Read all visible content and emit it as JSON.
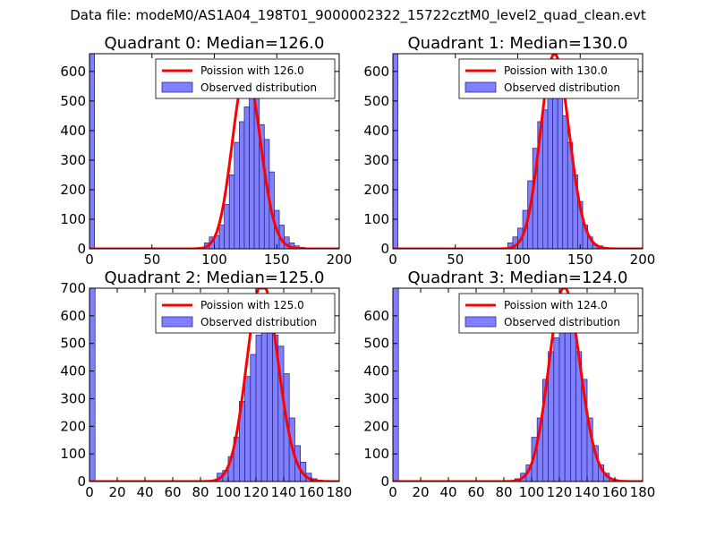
{
  "suptitle": "Data file: modeM0/AS1A04_198T01_9000002322_15722cztM0_level2_quad_clean.evt",
  "colors": {
    "bar_fill": "#8080ff",
    "bar_edge": "#2a2a8c",
    "fit_line": "#ff0000"
  },
  "chart_data": [
    {
      "type": "bar",
      "title": "Quadrant 0: Median=126.0",
      "xlim": [
        0,
        200
      ],
      "ylim": [
        0,
        660
      ],
      "xticks": [
        0,
        50,
        100,
        150,
        200
      ],
      "yticks": [
        0,
        100,
        200,
        300,
        400,
        500,
        600
      ],
      "median": 126.0,
      "bin_width": 4,
      "legend": {
        "line": "Poission with 126.0",
        "bars": "Observed distribution"
      },
      "bins": [
        {
          "x": 0,
          "count": 660
        },
        {
          "x": 88,
          "count": 5
        },
        {
          "x": 92,
          "count": 20
        },
        {
          "x": 96,
          "count": 40
        },
        {
          "x": 100,
          "count": 45
        },
        {
          "x": 104,
          "count": 80
        },
        {
          "x": 108,
          "count": 150
        },
        {
          "x": 112,
          "count": 250
        },
        {
          "x": 116,
          "count": 360
        },
        {
          "x": 120,
          "count": 430
        },
        {
          "x": 124,
          "count": 480
        },
        {
          "x": 128,
          "count": 520
        },
        {
          "x": 132,
          "count": 510
        },
        {
          "x": 136,
          "count": 420
        },
        {
          "x": 140,
          "count": 370
        },
        {
          "x": 144,
          "count": 260
        },
        {
          "x": 148,
          "count": 130
        },
        {
          "x": 152,
          "count": 80
        },
        {
          "x": 156,
          "count": 40
        },
        {
          "x": 160,
          "count": 20
        },
        {
          "x": 164,
          "count": 10
        },
        {
          "x": 168,
          "count": 5
        },
        {
          "x": 172,
          "count": 3
        }
      ]
    },
    {
      "type": "bar",
      "title": "Quadrant 1: Median=130.0",
      "xlim": [
        0,
        200
      ],
      "ylim": [
        0,
        660
      ],
      "xticks": [
        0,
        50,
        100,
        150,
        200
      ],
      "yticks": [
        0,
        100,
        200,
        300,
        400,
        500,
        600
      ],
      "median": 130.0,
      "bin_width": 4,
      "legend": {
        "line": "Poission with 130.0",
        "bars": "Observed distribution"
      },
      "bins": [
        {
          "x": 0,
          "count": 660
        },
        {
          "x": 92,
          "count": 20
        },
        {
          "x": 96,
          "count": 40
        },
        {
          "x": 100,
          "count": 70
        },
        {
          "x": 104,
          "count": 130
        },
        {
          "x": 108,
          "count": 230
        },
        {
          "x": 112,
          "count": 340
        },
        {
          "x": 116,
          "count": 430
        },
        {
          "x": 120,
          "count": 470
        },
        {
          "x": 124,
          "count": 530
        },
        {
          "x": 128,
          "count": 560
        },
        {
          "x": 132,
          "count": 520
        },
        {
          "x": 136,
          "count": 450
        },
        {
          "x": 140,
          "count": 360
        },
        {
          "x": 144,
          "count": 250
        },
        {
          "x": 148,
          "count": 160
        },
        {
          "x": 152,
          "count": 80
        },
        {
          "x": 156,
          "count": 40
        },
        {
          "x": 160,
          "count": 15
        },
        {
          "x": 164,
          "count": 10
        },
        {
          "x": 168,
          "count": 5
        }
      ]
    },
    {
      "type": "bar",
      "title": "Quadrant 2: Median=125.0",
      "xlim": [
        0,
        180
      ],
      "ylim": [
        0,
        700
      ],
      "xticks": [
        0,
        20,
        40,
        60,
        80,
        100,
        120,
        140,
        160,
        180
      ],
      "yticks": [
        0,
        100,
        200,
        300,
        400,
        500,
        600,
        700
      ],
      "median": 125.0,
      "bin_width": 4,
      "legend": {
        "line": "Poission with 125.0",
        "bars": "Observed distribution"
      },
      "bins": [
        {
          "x": 0,
          "count": 700
        },
        {
          "x": 92,
          "count": 30
        },
        {
          "x": 96,
          "count": 40
        },
        {
          "x": 100,
          "count": 90
        },
        {
          "x": 104,
          "count": 160
        },
        {
          "x": 108,
          "count": 290
        },
        {
          "x": 112,
          "count": 380
        },
        {
          "x": 116,
          "count": 460
        },
        {
          "x": 120,
          "count": 530
        },
        {
          "x": 124,
          "count": 600
        },
        {
          "x": 128,
          "count": 600
        },
        {
          "x": 132,
          "count": 530
        },
        {
          "x": 136,
          "count": 490
        },
        {
          "x": 140,
          "count": 390
        },
        {
          "x": 144,
          "count": 230
        },
        {
          "x": 148,
          "count": 130
        },
        {
          "x": 152,
          "count": 70
        },
        {
          "x": 156,
          "count": 30
        },
        {
          "x": 160,
          "count": 10
        },
        {
          "x": 164,
          "count": 5
        }
      ]
    },
    {
      "type": "bar",
      "title": "Quadrant 3: Median=124.0",
      "xlim": [
        0,
        180
      ],
      "ylim": [
        0,
        700
      ],
      "xticks": [
        0,
        20,
        40,
        60,
        80,
        100,
        120,
        140,
        160,
        180
      ],
      "yticks": [
        0,
        100,
        200,
        300,
        400,
        500,
        600
      ],
      "median": 124.0,
      "bin_width": 4,
      "legend": {
        "line": "Poission with 124.0",
        "bars": "Observed distribution"
      },
      "bins": [
        {
          "x": 0,
          "count": 700
        },
        {
          "x": 88,
          "count": 10
        },
        {
          "x": 92,
          "count": 30
        },
        {
          "x": 96,
          "count": 60
        },
        {
          "x": 100,
          "count": 160
        },
        {
          "x": 104,
          "count": 230
        },
        {
          "x": 108,
          "count": 370
        },
        {
          "x": 112,
          "count": 470
        },
        {
          "x": 116,
          "count": 520
        },
        {
          "x": 120,
          "count": 580
        },
        {
          "x": 124,
          "count": 600
        },
        {
          "x": 128,
          "count": 580
        },
        {
          "x": 132,
          "count": 470
        },
        {
          "x": 136,
          "count": 370
        },
        {
          "x": 140,
          "count": 230
        },
        {
          "x": 144,
          "count": 130
        },
        {
          "x": 148,
          "count": 60
        },
        {
          "x": 152,
          "count": 30
        },
        {
          "x": 156,
          "count": 10
        },
        {
          "x": 160,
          "count": 5
        }
      ]
    }
  ]
}
